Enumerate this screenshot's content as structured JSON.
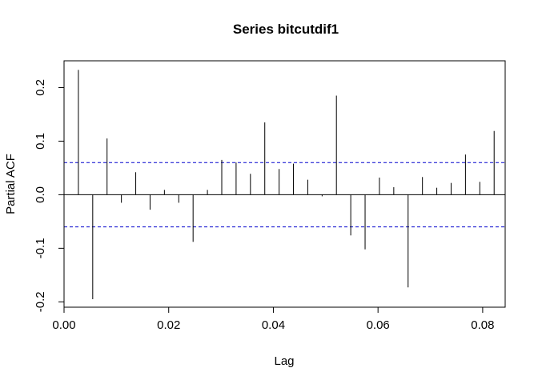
{
  "chart_data": {
    "type": "bar",
    "title": "Series  bitcutdif1",
    "xlabel": "Lag",
    "ylabel": "Partial ACF",
    "xlim": [
      0.0,
      0.0843
    ],
    "ylim": [
      -0.21,
      0.25
    ],
    "x_ticks": [
      "0.00",
      "0.02",
      "0.04",
      "0.06",
      "0.08"
    ],
    "y_ticks": [
      "-0.2",
      "-0.1",
      "0.0",
      "0.1",
      "0.2"
    ],
    "ci_bound": 0.06,
    "colors": {
      "bars": "#000000",
      "ci": "#0000cd",
      "zero": "#000000"
    },
    "lags": [
      0.00274,
      0.00548,
      0.00822,
      0.01096,
      0.0137,
      0.01644,
      0.01918,
      0.02192,
      0.02466,
      0.0274,
      0.03014,
      0.03288,
      0.03562,
      0.03836,
      0.0411,
      0.04384,
      0.04658,
      0.04932,
      0.05205,
      0.05479,
      0.05753,
      0.06027,
      0.06301,
      0.06575,
      0.06849,
      0.07123,
      0.07397,
      0.07671,
      0.07945,
      0.08219
    ],
    "values": [
      0.233,
      -0.195,
      0.105,
      -0.015,
      0.042,
      -0.028,
      0.009,
      -0.015,
      -0.088,
      0.009,
      0.065,
      0.06,
      0.039,
      0.135,
      0.048,
      0.058,
      0.028,
      -0.003,
      0.185,
      -0.076,
      -0.102,
      0.032,
      0.014,
      -0.173,
      0.033,
      0.013,
      0.022,
      0.075,
      0.024,
      0.119
    ]
  }
}
